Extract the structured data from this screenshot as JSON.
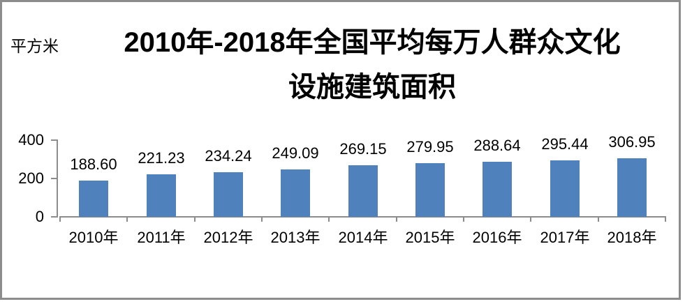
{
  "chart_data": {
    "type": "bar",
    "title": "2010年-2018年全国平均每万人群众文化设施建筑面积",
    "title_lines": [
      "2010年-2018年全国平均每万人群众文化",
      "设施建筑面积"
    ],
    "unit_label": "平方米",
    "categories": [
      "2010年",
      "2011年",
      "2012年",
      "2013年",
      "2014年",
      "2015年",
      "2016年",
      "2017年",
      "2018年"
    ],
    "values": [
      188.6,
      221.23,
      234.24,
      249.09,
      269.15,
      279.95,
      288.64,
      295.44,
      306.95
    ],
    "value_labels": [
      "188.60",
      "221.23",
      "234.24",
      "249.09",
      "269.15",
      "279.95",
      "288.64",
      "295.44",
      "306.95"
    ],
    "xlabel": "",
    "ylabel": "平方米",
    "ylim": [
      0,
      400
    ],
    "yticks": [
      0,
      200,
      400
    ],
    "grid": false,
    "legend": false,
    "bar_color": "#4F81BD",
    "axis_color": "#8C8C8C",
    "frame_color": "#8C8C8C",
    "text_color": "#000000"
  }
}
